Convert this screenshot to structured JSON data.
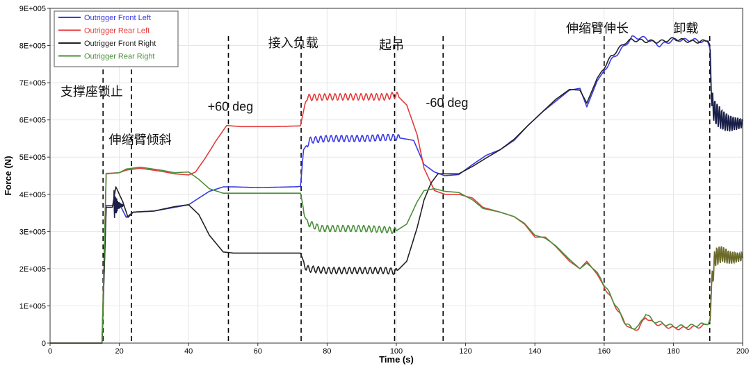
{
  "chart_data": {
    "type": "line",
    "xlabel": "Time (s)",
    "ylabel": "Force (N)",
    "xlim": [
      0,
      200
    ],
    "ylim": [
      0,
      900000
    ],
    "xticks": [
      {
        "v": 0,
        "label": "0"
      },
      {
        "v": 20,
        "label": "20"
      },
      {
        "v": 40,
        "label": "40"
      },
      {
        "v": 60,
        "label": "60"
      },
      {
        "v": 80,
        "label": "80"
      },
      {
        "v": 100,
        "label": "100"
      },
      {
        "v": 120,
        "label": "120"
      },
      {
        "v": 140,
        "label": "140"
      },
      {
        "v": 160,
        "label": "160"
      },
      {
        "v": 180,
        "label": "180"
      },
      {
        "v": 200,
        "label": "200"
      }
    ],
    "yticks": [
      {
        "v": 0,
        "label": "0"
      },
      {
        "v": 100000,
        "label": "1E+005"
      },
      {
        "v": 200000,
        "label": "2E+005"
      },
      {
        "v": 300000,
        "label": "3E+005"
      },
      {
        "v": 400000,
        "label": "4E+005"
      },
      {
        "v": 500000,
        "label": "5E+005"
      },
      {
        "v": 600000,
        "label": "6E+005"
      },
      {
        "v": 700000,
        "label": "7E+005"
      },
      {
        "v": 800000,
        "label": "8E+005"
      },
      {
        "v": 900000,
        "label": "9E+005"
      }
    ],
    "legend_position": "top-left",
    "series": [
      {
        "name": "Outrigger Front Left",
        "color": "#3a3ae6",
        "points": [
          [
            0,
            0
          ],
          [
            15,
            0
          ],
          [
            16.2,
            370000
          ],
          [
            18,
            370000
          ],
          [
            20,
            375000
          ],
          [
            22,
            338000
          ],
          [
            24,
            352000
          ],
          [
            30,
            355000
          ],
          [
            36,
            365000
          ],
          [
            40,
            372000
          ],
          [
            43,
            390000
          ],
          [
            46,
            408000
          ],
          [
            50,
            420000
          ],
          [
            53,
            420000
          ],
          [
            60,
            418000
          ],
          [
            70,
            420000
          ],
          [
            72.3,
            421000
          ],
          [
            73.2,
            520000
          ],
          [
            75,
            545000
          ],
          [
            80,
            550000
          ],
          [
            90,
            550000
          ],
          [
            97,
            553000
          ],
          [
            100,
            553000
          ],
          [
            105,
            545000
          ],
          [
            108,
            480000
          ],
          [
            111,
            460000
          ],
          [
            114,
            450000
          ],
          [
            118,
            453000
          ],
          [
            122,
            480000
          ],
          [
            126,
            505000
          ],
          [
            130,
            520000
          ],
          [
            134,
            545000
          ],
          [
            138,
            585000
          ],
          [
            142,
            620000
          ],
          [
            146,
            650000
          ],
          [
            150,
            680000
          ],
          [
            153,
            685000
          ],
          [
            155,
            635000
          ],
          [
            158,
            705000
          ],
          [
            162,
            760000
          ],
          [
            166,
            800000
          ],
          [
            168,
            822000
          ],
          [
            172,
            820000
          ],
          [
            176,
            800000
          ],
          [
            180,
            815000
          ],
          [
            186,
            815000
          ],
          [
            190,
            808000
          ],
          [
            190.6,
            790000
          ]
        ]
      },
      {
        "name": "Outrigger Rear Left",
        "color": "#e63a3a",
        "points": [
          [
            0,
            0
          ],
          [
            15,
            0
          ],
          [
            16.2,
            456000
          ],
          [
            20,
            458000
          ],
          [
            22,
            465000
          ],
          [
            26,
            470000
          ],
          [
            32,
            462000
          ],
          [
            36,
            455000
          ],
          [
            40,
            452000
          ],
          [
            42,
            460000
          ],
          [
            45,
            500000
          ],
          [
            48,
            545000
          ],
          [
            51,
            585000
          ],
          [
            55,
            582000
          ],
          [
            65,
            582000
          ],
          [
            72.3,
            584000
          ],
          [
            74,
            660000
          ],
          [
            80,
            662000
          ],
          [
            90,
            662000
          ],
          [
            97,
            662000
          ],
          [
            100,
            668000
          ],
          [
            103,
            640000
          ],
          [
            106,
            560000
          ],
          [
            108,
            470000
          ],
          [
            111,
            410000
          ],
          [
            114,
            400000
          ],
          [
            118,
            400000
          ],
          [
            122,
            390000
          ],
          [
            125,
            365000
          ],
          [
            130,
            352000
          ],
          [
            134,
            340000
          ],
          [
            137,
            320000
          ],
          [
            140,
            285000
          ],
          [
            143,
            285000
          ],
          [
            146,
            260000
          ],
          [
            150,
            220000
          ],
          [
            153,
            200000
          ],
          [
            155,
            220000
          ],
          [
            158,
            185000
          ],
          [
            162,
            120000
          ],
          [
            166,
            55000
          ],
          [
            168,
            35000
          ],
          [
            170,
            40000
          ],
          [
            172,
            70000
          ],
          [
            174,
            55000
          ],
          [
            176,
            50000
          ],
          [
            180,
            40000
          ],
          [
            184,
            40000
          ],
          [
            188,
            45000
          ],
          [
            190,
            50000
          ],
          [
            190.6,
            60000
          ]
        ]
      },
      {
        "name": "Outrigger Front Right",
        "color": "#222222",
        "points": [
          [
            0,
            0
          ],
          [
            15,
            0
          ],
          [
            16.2,
            365000
          ],
          [
            18,
            365000
          ],
          [
            19,
            420000
          ],
          [
            21,
            380000
          ],
          [
            22.5,
            338000
          ],
          [
            24,
            352000
          ],
          [
            30,
            355000
          ],
          [
            36,
            367000
          ],
          [
            40,
            372000
          ],
          [
            43,
            345000
          ],
          [
            46,
            290000
          ],
          [
            50,
            245000
          ],
          [
            53,
            242000
          ],
          [
            60,
            242000
          ],
          [
            70,
            242000
          ],
          [
            72.3,
            242000
          ],
          [
            74,
            200000
          ],
          [
            80,
            195000
          ],
          [
            90,
            195000
          ],
          [
            97,
            195000
          ],
          [
            100,
            192000
          ],
          [
            103,
            220000
          ],
          [
            106,
            310000
          ],
          [
            108,
            385000
          ],
          [
            110,
            430000
          ],
          [
            112,
            455000
          ],
          [
            114,
            455000
          ],
          [
            118,
            455000
          ],
          [
            122,
            475000
          ],
          [
            126,
            498000
          ],
          [
            130,
            520000
          ],
          [
            134,
            548000
          ],
          [
            138,
            585000
          ],
          [
            142,
            620000
          ],
          [
            146,
            655000
          ],
          [
            150,
            682000
          ],
          [
            153,
            680000
          ],
          [
            155,
            645000
          ],
          [
            158,
            712000
          ],
          [
            162,
            770000
          ],
          [
            166,
            808000
          ],
          [
            168,
            815000
          ],
          [
            172,
            812000
          ],
          [
            176,
            810000
          ],
          [
            180,
            818000
          ],
          [
            186,
            810000
          ],
          [
            190,
            812000
          ],
          [
            190.6,
            800000
          ]
        ]
      },
      {
        "name": "Outrigger Rear Right",
        "color": "#4a8f3a",
        "points": [
          [
            0,
            0
          ],
          [
            15,
            0
          ],
          [
            16.2,
            455000
          ],
          [
            20,
            458000
          ],
          [
            22,
            468000
          ],
          [
            26,
            473000
          ],
          [
            32,
            465000
          ],
          [
            36,
            458000
          ],
          [
            40,
            460000
          ],
          [
            43,
            440000
          ],
          [
            46,
            415000
          ],
          [
            50,
            403000
          ],
          [
            53,
            403000
          ],
          [
            60,
            403000
          ],
          [
            70,
            403000
          ],
          [
            72.3,
            403000
          ],
          [
            74,
            325000
          ],
          [
            78,
            308000
          ],
          [
            90,
            308000
          ],
          [
            97,
            305000
          ],
          [
            100,
            302000
          ],
          [
            103,
            320000
          ],
          [
            106,
            380000
          ],
          [
            108,
            410000
          ],
          [
            111,
            415000
          ],
          [
            114,
            408000
          ],
          [
            118,
            405000
          ],
          [
            122,
            385000
          ],
          [
            125,
            362000
          ],
          [
            130,
            352000
          ],
          [
            134,
            340000
          ],
          [
            137,
            322000
          ],
          [
            140,
            290000
          ],
          [
            143,
            282000
          ],
          [
            146,
            262000
          ],
          [
            150,
            225000
          ],
          [
            153,
            200000
          ],
          [
            155,
            215000
          ],
          [
            158,
            190000
          ],
          [
            162,
            125000
          ],
          [
            166,
            55000
          ],
          [
            168,
            40000
          ],
          [
            170,
            45000
          ],
          [
            172,
            80000
          ],
          [
            174,
            60000
          ],
          [
            176,
            55000
          ],
          [
            180,
            45000
          ],
          [
            184,
            45000
          ],
          [
            188,
            50000
          ],
          [
            190,
            50000
          ],
          [
            190.6,
            65000
          ]
        ]
      }
    ],
    "tail_series": [
      {
        "name_ref": "Outrigger Front Right",
        "color": "#1a1f4a",
        "points": [
          [
            190.6,
            790000
          ],
          [
            191,
            650000
          ],
          [
            192,
            620000
          ],
          [
            194,
            600000
          ],
          [
            196,
            590000
          ],
          [
            198,
            590000
          ],
          [
            200,
            590000
          ]
        ],
        "osc": 35000
      },
      {
        "name_ref": "Outrigger Rear Right",
        "color": "#6b6a2a",
        "points": [
          [
            190.6,
            60000
          ],
          [
            191,
            150000
          ],
          [
            192,
            230000
          ],
          [
            194,
            240000
          ],
          [
            196,
            230000
          ],
          [
            198,
            230000
          ],
          [
            200,
            232000
          ]
        ],
        "osc": 28000
      }
    ],
    "events": [
      {
        "x": 15.3,
        "label": "支撑座锁止",
        "label_x": 3,
        "label_y": 665000
      },
      {
        "x": 23.5,
        "label": "伸缩臂倾斜",
        "label_x": 17,
        "label_y": 535000
      },
      {
        "x": 51.5,
        "label": "+60 deg",
        "label_x": 45.5,
        "label_y": 625000
      },
      {
        "x": 72.5,
        "label": "接入负载",
        "label_x": 63,
        "label_y": 795000
      },
      {
        "x": 99.5,
        "label": "起吊",
        "label_x": 95,
        "label_y": 790000
      },
      {
        "x": 113.5,
        "label": "-60 deg",
        "label_x": 108.5,
        "label_y": 635000
      },
      {
        "x": 160,
        "label": "伸缩臂伸长",
        "label_x": 149,
        "label_y": 835000
      },
      {
        "x": 190.5,
        "label": "卸载",
        "label_x": 180,
        "label_y": 835000
      }
    ]
  }
}
